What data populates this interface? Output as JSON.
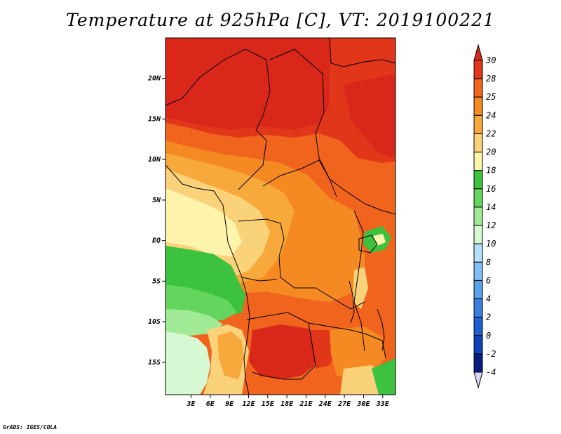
{
  "title": "Temperature at 925hPa [C], VT: 2019100221",
  "credit": "GrADS: IGES/COLA",
  "map": {
    "lon_range": [
      -1,
      35
    ],
    "lat_range": [
      -19,
      25
    ],
    "lon_ticks": [
      {
        "value": 3,
        "label": "3E"
      },
      {
        "value": 6,
        "label": "6E"
      },
      {
        "value": 9,
        "label": "9E"
      },
      {
        "value": 12,
        "label": "12E"
      },
      {
        "value": 15,
        "label": "15E"
      },
      {
        "value": 18,
        "label": "18E"
      },
      {
        "value": 21,
        "label": "21E"
      },
      {
        "value": 24,
        "label": "24E"
      },
      {
        "value": 27,
        "label": "27E"
      },
      {
        "value": 30,
        "label": "30E"
      },
      {
        "value": 33,
        "label": "33E"
      }
    ],
    "lat_ticks": [
      {
        "value": 20,
        "label": "20N"
      },
      {
        "value": 15,
        "label": "15N"
      },
      {
        "value": 10,
        "label": "10N"
      },
      {
        "value": 5,
        "label": "5N"
      },
      {
        "value": 0,
        "label": "EQ"
      },
      {
        "value": -5,
        "label": "5S"
      },
      {
        "value": -10,
        "label": "10S"
      },
      {
        "value": -15,
        "label": "15S"
      }
    ]
  },
  "colorbar": {
    "labels": [
      "30",
      "28",
      "25",
      "24",
      "22",
      "20",
      "18",
      "16",
      "14",
      "12",
      "10",
      "8",
      "6",
      "4",
      "2",
      "0",
      "-2",
      "-4"
    ],
    "colors": {
      "above_30": "#d9281a",
      "28_30": "#e2361a",
      "25_28": "#f0641e",
      "24_25": "#f58a22",
      "22_24": "#f7a93c",
      "20_22": "#fad27a",
      "18_20": "#fef4ac",
      "16_18": "#3cc23e",
      "14_16": "#64d65e",
      "12_14": "#a2eb96",
      "10_12": "#d6f8d2",
      "8_10": "#b4e0fa",
      "6_8": "#82c0f4",
      "4_6": "#5aa0ea",
      "2_4": "#3a7ee0",
      "0_2": "#1e5fd2",
      "neg2_0": "#0f41b8",
      "neg4_neg2": "#081c80",
      "below_neg4": "#dcd4f5"
    }
  }
}
